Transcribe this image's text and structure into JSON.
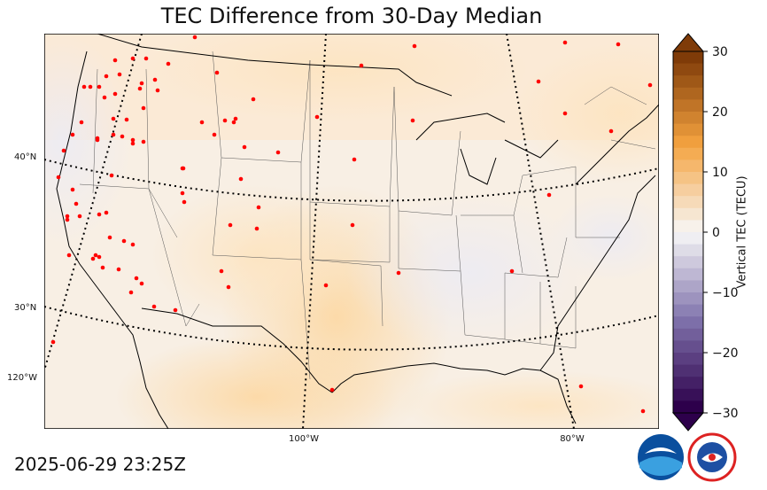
{
  "title": "TEC Difference from 30-Day Median",
  "timestamp": "2025-06-29 23:25Z",
  "lat_labels": [
    "40°N",
    "30°N",
    "120°W"
  ],
  "lon_labels": [
    "100°W",
    "80°W"
  ],
  "colorbar": {
    "label": "Vertical TEC (TECU)",
    "ticks": [
      "30",
      "20",
      "10",
      "0",
      "−10",
      "−20",
      "−30"
    ],
    "min": -30,
    "max": 30
  },
  "colors": {
    "positive_max": "#7f3b08",
    "neutral": "#f7f7f7",
    "negative_max": "#2d004b",
    "station": "#ff0000"
  },
  "logos": [
    "noaa-logo",
    "nws-logo"
  ]
}
